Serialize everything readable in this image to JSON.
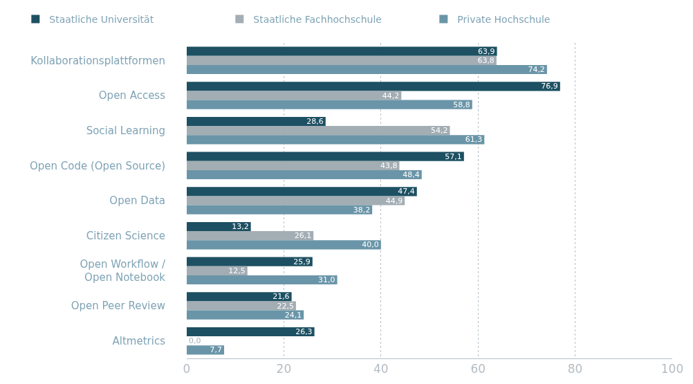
{
  "chart_data": {
    "type": "bar",
    "orientation": "horizontal",
    "categories": [
      "Kollaborationsplattformen",
      "Open Access",
      "Social Learning",
      "Open Code (Open Source)",
      "Open Data",
      "Citizen Science",
      "Open Workflow /\nOpen Notebook",
      "Open Peer Review",
      "Altmetrics"
    ],
    "series": [
      {
        "name": "Staatliche Universität",
        "color": "#1d5062",
        "values": [
          63.9,
          76.9,
          28.6,
          57.1,
          47.4,
          13.2,
          25.9,
          21.6,
          26.3
        ],
        "value_labels": [
          "63,9",
          "76,9",
          "28,6",
          "57,1",
          "47,4",
          "13,2",
          "25,9",
          "21,6",
          "26,3"
        ]
      },
      {
        "name": "Staatliche Fachhochschule",
        "color": "#a3adb4",
        "values": [
          63.8,
          44.2,
          54.2,
          43.8,
          44.9,
          26.1,
          12.5,
          22.5,
          0.0
        ],
        "value_labels": [
          "63,8",
          "44,2",
          "54,2",
          "43,8",
          "44,9",
          "26,1",
          "12,5",
          "22,5",
          "0,0"
        ]
      },
      {
        "name": "Private Hochschule",
        "color": "#6a95a8",
        "values": [
          74.2,
          58.8,
          61.3,
          48.4,
          38.2,
          40.0,
          31.0,
          24.1,
          7.7
        ],
        "value_labels": [
          "74,2",
          "58,8",
          "61,3",
          "48,4",
          "38,2",
          "40,0",
          "31,0",
          "24,1",
          "7,7"
        ]
      }
    ],
    "xlim": [
      0,
      100
    ],
    "xticks": [
      0,
      20,
      40,
      60,
      80,
      100
    ],
    "grid": "x",
    "legend": "top left"
  }
}
